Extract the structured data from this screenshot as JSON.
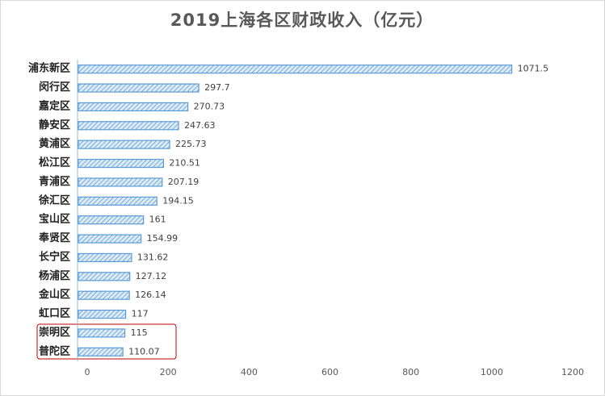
{
  "chart_data": {
    "type": "bar",
    "orientation": "horizontal",
    "title": "2019上海各区财政收入（亿元）",
    "categories": [
      "浦东新区",
      "闵行区",
      "嘉定区",
      "静安区",
      "黄浦区",
      "松江区",
      "青浦区",
      "徐汇区",
      "宝山区",
      "奉贤区",
      "长宁区",
      "杨浦区",
      "金山区",
      "虹口区",
      "崇明区",
      "普陀区"
    ],
    "values": [
      1071.5,
      297.7,
      270.73,
      247.63,
      225.73,
      210.51,
      207.19,
      194.15,
      161,
      154.99,
      131.62,
      127.12,
      126.14,
      117,
      115,
      110.07
    ],
    "color": "#5b9bd5",
    "xlim": [
      0,
      1200
    ],
    "xticks": [
      0,
      200,
      400,
      600,
      800,
      1000,
      1200
    ],
    "grid": false
  }
}
